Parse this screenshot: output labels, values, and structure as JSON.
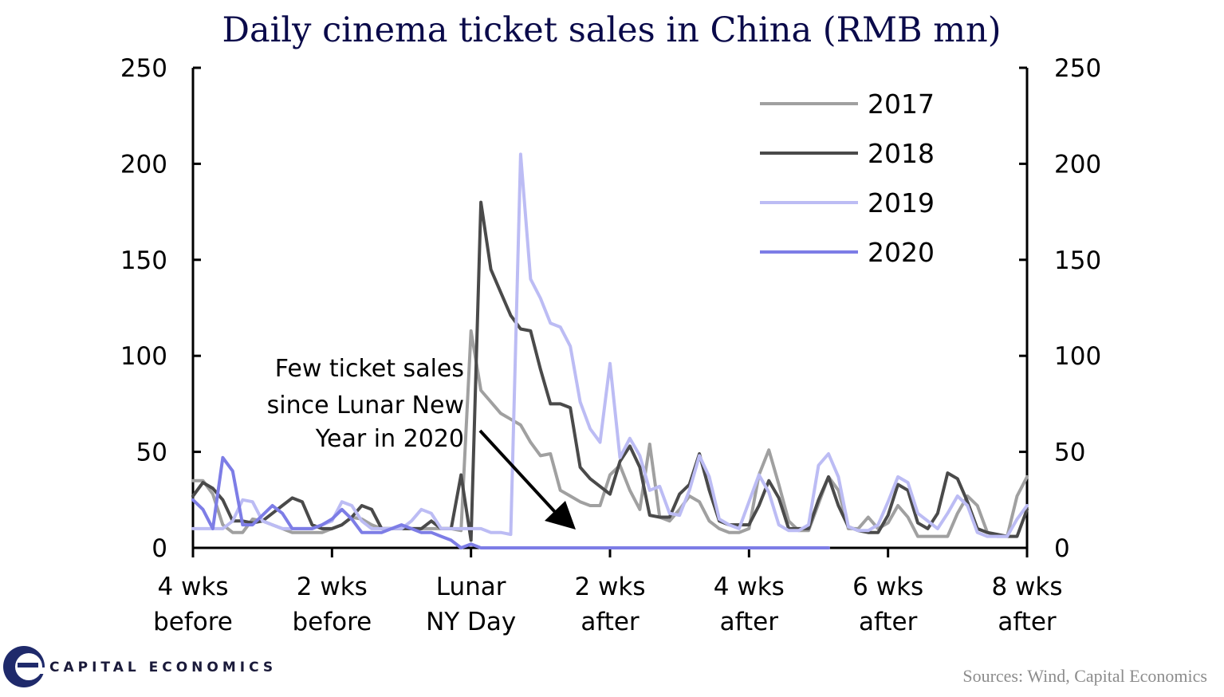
{
  "chart_data": {
    "type": "line",
    "title": "Daily cinema ticket sales in China (RMB mn)",
    "ylim": [
      0,
      250
    ],
    "y_ticks": [
      "0",
      "50",
      "100",
      "150",
      "200",
      "250"
    ],
    "y_tick_values": [
      0,
      50,
      100,
      150,
      200,
      250
    ],
    "x_range": [
      -28,
      56
    ],
    "x_ticks": [
      {
        "value": -28,
        "line1": "4 wks",
        "line2": "before"
      },
      {
        "value": -14,
        "line1": "2 wks",
        "line2": "before"
      },
      {
        "value": 0,
        "line1": "Lunar",
        "line2": "NY Day"
      },
      {
        "value": 14,
        "line1": "2 wks",
        "line2": "after"
      },
      {
        "value": 28,
        "line1": "4 wks",
        "line2": "after"
      },
      {
        "value": 42,
        "line1": "6 wks",
        "line2": "after"
      },
      {
        "value": 56,
        "line1": "8 wks",
        "line2": "after"
      }
    ],
    "legend_position": "top-right",
    "series": [
      {
        "name": "2017",
        "color": "#a0a0a0",
        "points": [
          [
            -28,
            35
          ],
          [
            -27,
            35
          ],
          [
            -26,
            28
          ],
          [
            -25,
            12
          ],
          [
            -24,
            8
          ],
          [
            -23,
            8
          ],
          [
            -22,
            15
          ],
          [
            -21,
            14
          ],
          [
            -20,
            12
          ],
          [
            -19,
            10
          ],
          [
            -18,
            8
          ],
          [
            -17,
            8
          ],
          [
            -16,
            8
          ],
          [
            -15,
            8
          ],
          [
            -14,
            10
          ],
          [
            -13,
            12
          ],
          [
            -12,
            16
          ],
          [
            -11,
            15
          ],
          [
            -10,
            12
          ],
          [
            -9,
            10
          ],
          [
            -8,
            10
          ],
          [
            -7,
            10
          ],
          [
            -6,
            10
          ],
          [
            -5,
            10
          ],
          [
            -4,
            10
          ],
          [
            -3,
            10
          ],
          [
            -2,
            10
          ],
          [
            -1,
            9
          ],
          [
            0,
            113
          ],
          [
            1,
            82
          ],
          [
            2,
            76
          ],
          [
            3,
            70
          ],
          [
            4,
            67
          ],
          [
            5,
            64
          ],
          [
            6,
            55
          ],
          [
            7,
            48
          ],
          [
            8,
            49
          ],
          [
            9,
            30
          ],
          [
            10,
            27
          ],
          [
            11,
            24
          ],
          [
            12,
            22
          ],
          [
            13,
            22
          ],
          [
            14,
            38
          ],
          [
            15,
            43
          ],
          [
            16,
            30
          ],
          [
            17,
            20
          ],
          [
            18,
            54
          ],
          [
            19,
            16
          ],
          [
            20,
            14
          ],
          [
            21,
            20
          ],
          [
            22,
            27
          ],
          [
            23,
            24
          ],
          [
            24,
            14
          ],
          [
            25,
            10
          ],
          [
            26,
            8
          ],
          [
            27,
            8
          ],
          [
            28,
            10
          ],
          [
            29,
            38
          ],
          [
            30,
            51
          ],
          [
            31,
            33
          ],
          [
            32,
            14
          ],
          [
            33,
            9
          ],
          [
            34,
            9
          ],
          [
            35,
            23
          ],
          [
            36,
            37
          ],
          [
            37,
            30
          ],
          [
            38,
            10
          ],
          [
            39,
            10
          ],
          [
            40,
            16
          ],
          [
            41,
            10
          ],
          [
            42,
            13
          ],
          [
            43,
            22
          ],
          [
            44,
            16
          ],
          [
            45,
            6
          ],
          [
            46,
            6
          ],
          [
            47,
            6
          ],
          [
            48,
            6
          ],
          [
            49,
            18
          ],
          [
            50,
            27
          ],
          [
            51,
            22
          ],
          [
            52,
            8
          ],
          [
            53,
            6
          ],
          [
            54,
            6
          ],
          [
            55,
            27
          ],
          [
            56,
            37
          ]
        ]
      },
      {
        "name": "2018",
        "color": "#4a4a4a",
        "points": [
          [
            -28,
            27
          ],
          [
            -27,
            34
          ],
          [
            -26,
            31
          ],
          [
            -25,
            25
          ],
          [
            -24,
            14
          ],
          [
            -23,
            14
          ],
          [
            -22,
            13
          ],
          [
            -21,
            14
          ],
          [
            -20,
            18
          ],
          [
            -19,
            22
          ],
          [
            -18,
            26
          ],
          [
            -17,
            24
          ],
          [
            -16,
            12
          ],
          [
            -15,
            10
          ],
          [
            -14,
            10
          ],
          [
            -13,
            12
          ],
          [
            -12,
            16
          ],
          [
            -11,
            22
          ],
          [
            -10,
            20
          ],
          [
            -9,
            10
          ],
          [
            -8,
            10
          ],
          [
            -7,
            10
          ],
          [
            -6,
            10
          ],
          [
            -5,
            10
          ],
          [
            -4,
            14
          ],
          [
            -3,
            10
          ],
          [
            -2,
            10
          ],
          [
            -1,
            38
          ],
          [
            0,
            4
          ],
          [
            1,
            180
          ],
          [
            2,
            145
          ],
          [
            3,
            133
          ],
          [
            4,
            121
          ],
          [
            5,
            114
          ],
          [
            6,
            113
          ],
          [
            7,
            93
          ],
          [
            8,
            75
          ],
          [
            9,
            75
          ],
          [
            10,
            73
          ],
          [
            11,
            42
          ],
          [
            12,
            36
          ],
          [
            13,
            32
          ],
          [
            14,
            28
          ],
          [
            15,
            45
          ],
          [
            16,
            53
          ],
          [
            17,
            42
          ],
          [
            18,
            17
          ],
          [
            19,
            16
          ],
          [
            20,
            16
          ],
          [
            21,
            28
          ],
          [
            22,
            33
          ],
          [
            23,
            49
          ],
          [
            24,
            30
          ],
          [
            25,
            14
          ],
          [
            26,
            12
          ],
          [
            27,
            12
          ],
          [
            28,
            12
          ],
          [
            29,
            22
          ],
          [
            30,
            35
          ],
          [
            31,
            26
          ],
          [
            32,
            10
          ],
          [
            33,
            10
          ],
          [
            34,
            10
          ],
          [
            35,
            25
          ],
          [
            36,
            37
          ],
          [
            37,
            22
          ],
          [
            38,
            11
          ],
          [
            39,
            9
          ],
          [
            40,
            8
          ],
          [
            41,
            8
          ],
          [
            42,
            17
          ],
          [
            43,
            33
          ],
          [
            44,
            30
          ],
          [
            45,
            13
          ],
          [
            46,
            10
          ],
          [
            47,
            18
          ],
          [
            48,
            39
          ],
          [
            49,
            36
          ],
          [
            50,
            24
          ],
          [
            51,
            10
          ],
          [
            52,
            8
          ],
          [
            53,
            7
          ],
          [
            54,
            6
          ],
          [
            55,
            6
          ],
          [
            56,
            20
          ]
        ]
      },
      {
        "name": "2019",
        "color": "#bcbcf4",
        "points": [
          [
            -28,
            10
          ],
          [
            -27,
            10
          ],
          [
            -26,
            10
          ],
          [
            -25,
            10
          ],
          [
            -24,
            14
          ],
          [
            -23,
            25
          ],
          [
            -22,
            24
          ],
          [
            -21,
            14
          ],
          [
            -20,
            12
          ],
          [
            -19,
            10
          ],
          [
            -18,
            10
          ],
          [
            -17,
            10
          ],
          [
            -16,
            10
          ],
          [
            -15,
            12
          ],
          [
            -14,
            14
          ],
          [
            -13,
            24
          ],
          [
            -12,
            22
          ],
          [
            -11,
            14
          ],
          [
            -10,
            10
          ],
          [
            -9,
            10
          ],
          [
            -8,
            10
          ],
          [
            -7,
            10
          ],
          [
            -6,
            14
          ],
          [
            -5,
            20
          ],
          [
            -4,
            18
          ],
          [
            -3,
            10
          ],
          [
            -2,
            10
          ],
          [
            -1,
            10
          ],
          [
            0,
            10
          ],
          [
            1,
            10
          ],
          [
            2,
            8
          ],
          [
            3,
            8
          ],
          [
            4,
            7
          ],
          [
            5,
            205
          ],
          [
            6,
            140
          ],
          [
            7,
            130
          ],
          [
            8,
            117
          ],
          [
            9,
            115
          ],
          [
            10,
            105
          ],
          [
            11,
            76
          ],
          [
            12,
            62
          ],
          [
            13,
            55
          ],
          [
            14,
            96
          ],
          [
            15,
            47
          ],
          [
            16,
            57
          ],
          [
            17,
            48
          ],
          [
            18,
            30
          ],
          [
            19,
            32
          ],
          [
            20,
            18
          ],
          [
            21,
            17
          ],
          [
            22,
            30
          ],
          [
            23,
            48
          ],
          [
            24,
            37
          ],
          [
            25,
            15
          ],
          [
            26,
            12
          ],
          [
            27,
            10
          ],
          [
            28,
            24
          ],
          [
            29,
            38
          ],
          [
            30,
            29
          ],
          [
            31,
            12
          ],
          [
            32,
            9
          ],
          [
            33,
            9
          ],
          [
            34,
            12
          ],
          [
            35,
            43
          ],
          [
            36,
            49
          ],
          [
            37,
            37
          ],
          [
            38,
            11
          ],
          [
            39,
            9
          ],
          [
            40,
            9
          ],
          [
            41,
            12
          ],
          [
            42,
            24
          ],
          [
            43,
            37
          ],
          [
            44,
            34
          ],
          [
            45,
            18
          ],
          [
            46,
            14
          ],
          [
            47,
            10
          ],
          [
            48,
            18
          ],
          [
            49,
            27
          ],
          [
            50,
            22
          ],
          [
            51,
            8
          ],
          [
            52,
            6
          ],
          [
            53,
            6
          ],
          [
            54,
            6
          ],
          [
            55,
            15
          ],
          [
            56,
            22
          ]
        ]
      },
      {
        "name": "2020",
        "color": "#7d7de6",
        "points": [
          [
            -28,
            25
          ],
          [
            -27,
            20
          ],
          [
            -26,
            10
          ],
          [
            -25,
            47
          ],
          [
            -24,
            40
          ],
          [
            -23,
            12
          ],
          [
            -22,
            12
          ],
          [
            -21,
            17
          ],
          [
            -20,
            22
          ],
          [
            -19,
            18
          ],
          [
            -18,
            10
          ],
          [
            -17,
            10
          ],
          [
            -16,
            10
          ],
          [
            -15,
            12
          ],
          [
            -14,
            15
          ],
          [
            -13,
            20
          ],
          [
            -12,
            15
          ],
          [
            -11,
            8
          ],
          [
            -10,
            8
          ],
          [
            -9,
            8
          ],
          [
            -8,
            10
          ],
          [
            -7,
            12
          ],
          [
            -6,
            10
          ],
          [
            -5,
            8
          ],
          [
            -4,
            8
          ],
          [
            -3,
            6
          ],
          [
            -2,
            4
          ],
          [
            -1,
            0
          ],
          [
            0,
            2
          ],
          [
            1,
            0
          ],
          [
            2,
            0
          ],
          [
            3,
            0
          ],
          [
            4,
            0
          ],
          [
            5,
            0
          ],
          [
            6,
            0
          ],
          [
            7,
            0
          ],
          [
            8,
            0
          ],
          [
            9,
            0
          ],
          [
            10,
            0
          ],
          [
            11,
            0
          ],
          [
            12,
            0
          ],
          [
            13,
            0
          ],
          [
            14,
            0
          ],
          [
            15,
            0
          ],
          [
            16,
            0
          ],
          [
            17,
            0
          ],
          [
            18,
            0
          ],
          [
            19,
            0
          ],
          [
            20,
            0
          ],
          [
            21,
            0
          ],
          [
            22,
            0
          ],
          [
            23,
            0
          ],
          [
            24,
            0
          ],
          [
            25,
            0
          ],
          [
            26,
            0
          ],
          [
            27,
            0
          ],
          [
            28,
            0
          ],
          [
            29,
            0
          ],
          [
            30,
            0
          ],
          [
            31,
            0
          ],
          [
            32,
            0
          ],
          [
            33,
            0
          ],
          [
            34,
            0
          ],
          [
            35,
            0
          ],
          [
            36,
            0
          ]
        ]
      }
    ],
    "annotation": {
      "lines": [
        "Few ticket sales",
        "since Lunar New",
        "Year in 2020"
      ]
    }
  },
  "footer": {
    "source": "Sources: Wind, Capital Economics",
    "brand": "CAPITAL ECONOMICS",
    "logo_color": "#1f2a6b"
  }
}
